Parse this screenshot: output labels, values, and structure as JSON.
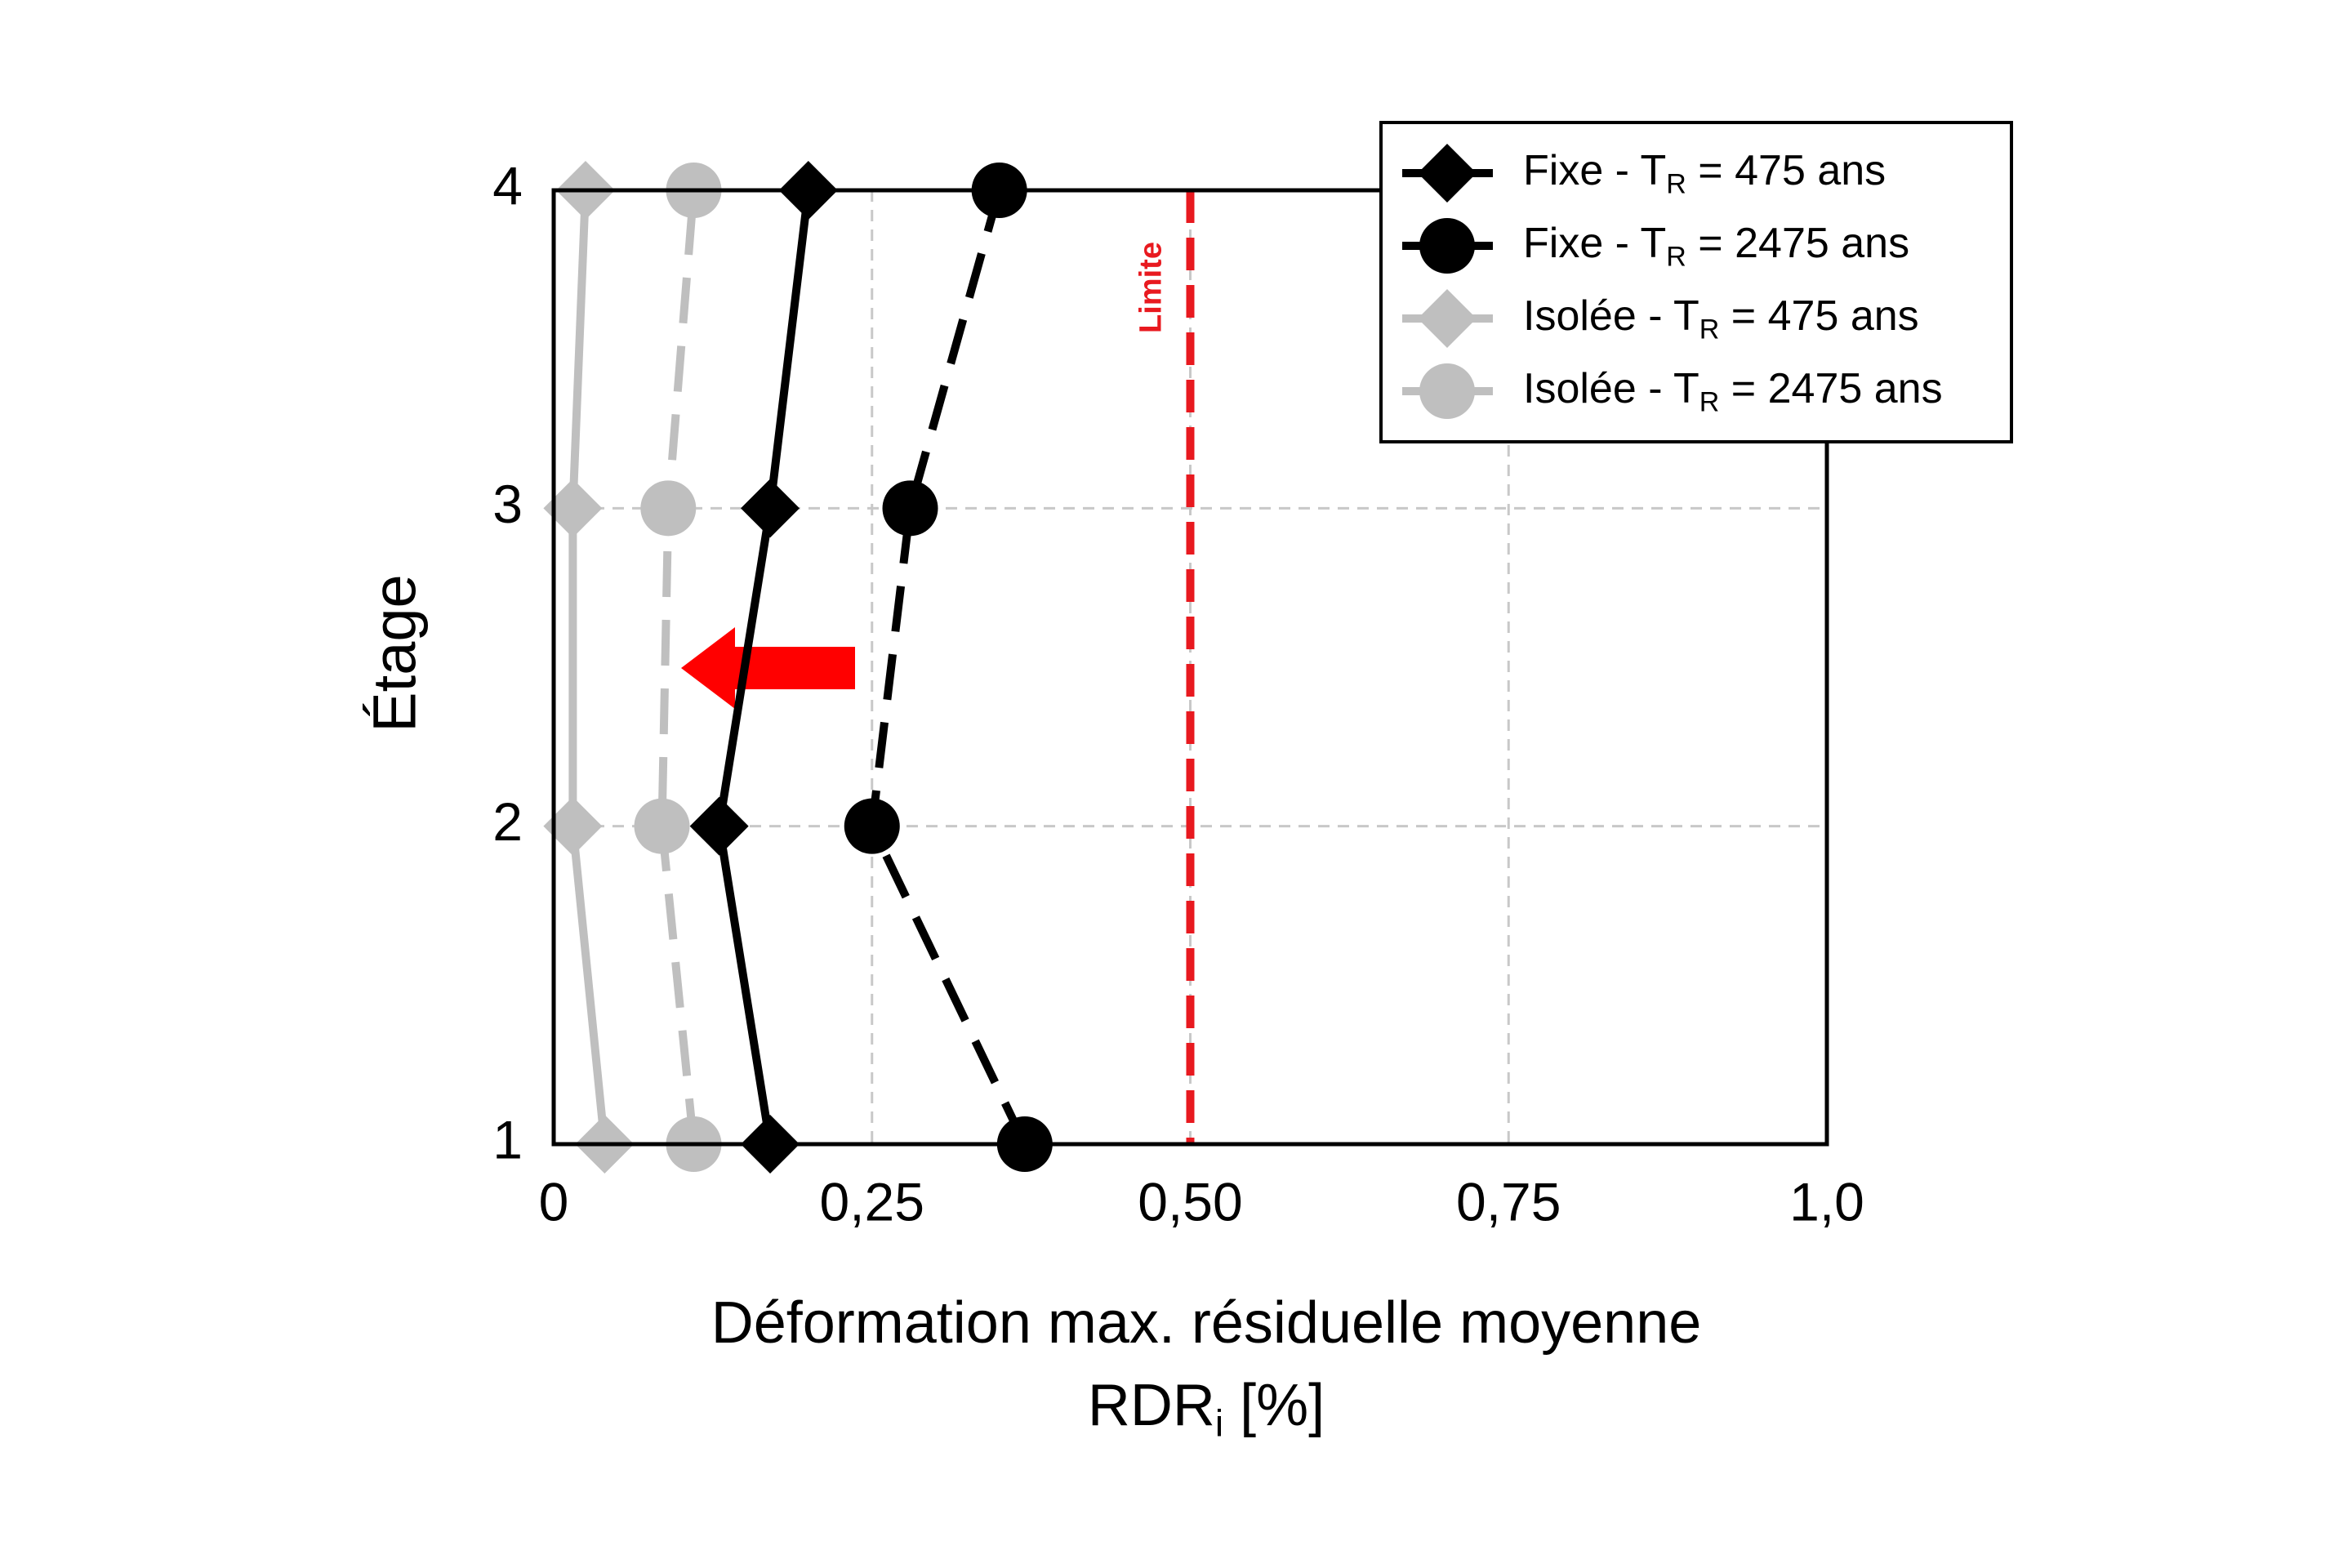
{
  "chart_data": {
    "type": "line",
    "orientation": "horizontal",
    "y_label": "Étage",
    "x_label": [
      "Déformation max. résiduelle moyenne",
      "RDRi [%]"
    ],
    "y": [
      1,
      2,
      3,
      4
    ],
    "series": [
      {
        "name": "Fixe - TR = 475 ans",
        "color": "#000000",
        "marker": "diamond",
        "dashed": false,
        "values": [
          0.17,
          0.13,
          0.17,
          0.2
        ]
      },
      {
        "name": "Fixe - TR = 2475 ans",
        "color": "#000000",
        "marker": "circle",
        "dashed": true,
        "values": [
          0.37,
          0.25,
          0.28,
          0.35
        ]
      },
      {
        "name": "Isolée - TR = 475 ans",
        "color": "#bfbfbf",
        "marker": "diamond",
        "dashed": false,
        "values": [
          0.04,
          0.015,
          0.015,
          0.025
        ]
      },
      {
        "name": "Isolée - TR = 2475 ans",
        "color": "#bfbfbf",
        "marker": "circle",
        "dashed": true,
        "values": [
          0.11,
          0.085,
          0.09,
          0.11
        ]
      }
    ],
    "xlim": [
      0,
      1
    ],
    "xticks": [
      0,
      {
        "value": 0.25,
        "label": "0,25"
      },
      {
        "value": 0.5,
        "label": "0,50"
      },
      {
        "value": 0.75,
        "label": "0,75"
      },
      {
        "value": 1,
        "label": "1,0"
      }
    ],
    "ylim": [
      1,
      4
    ],
    "yticks": [
      1,
      2,
      3,
      4
    ],
    "grid": true,
    "legend": "upper right",
    "limit": {
      "value": 0.5,
      "label": "Limite",
      "color": "#e8191f"
    }
  }
}
